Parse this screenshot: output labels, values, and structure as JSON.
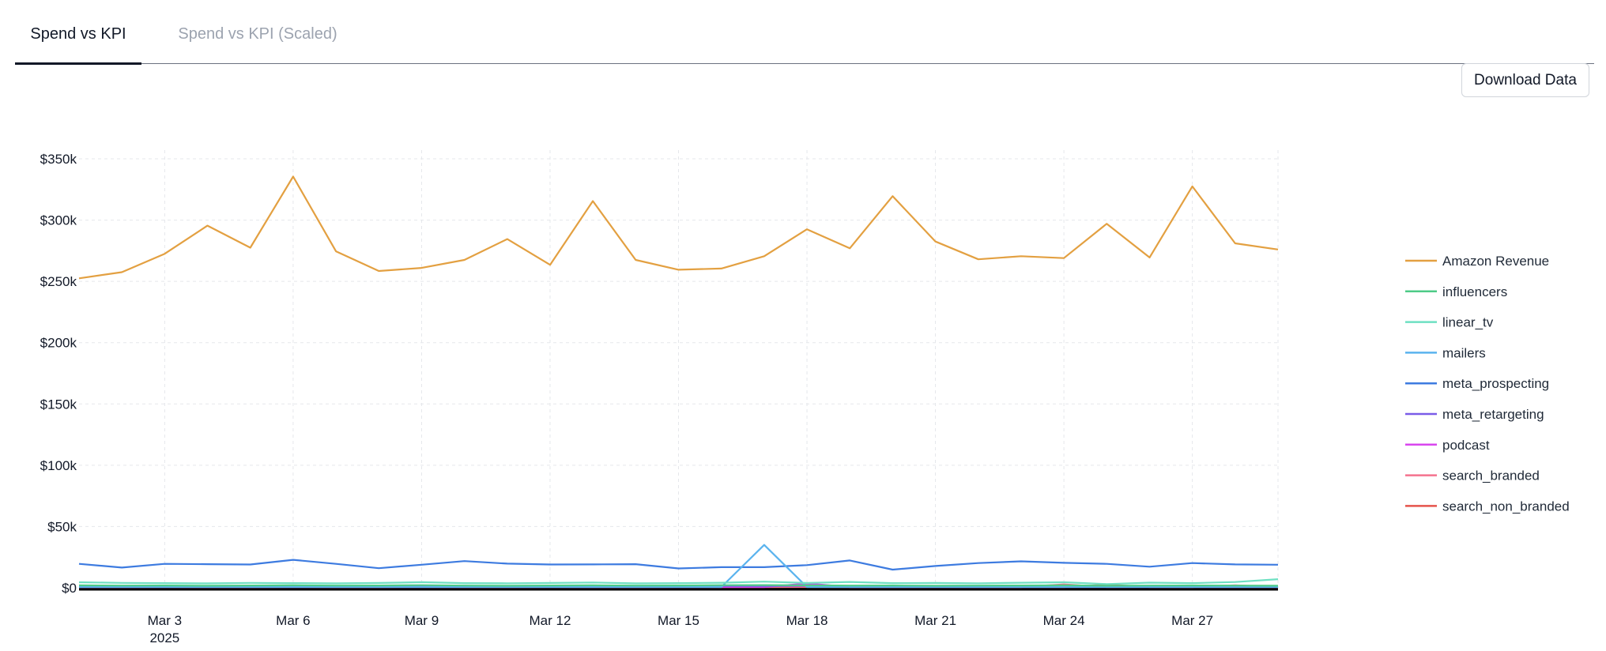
{
  "tabs": [
    {
      "label": "Spend vs KPI"
    },
    {
      "label": "Spend vs KPI (Scaled)"
    }
  ],
  "toolbar": {
    "download_label": "Download Data"
  },
  "chart_data": {
    "type": "line",
    "x_start": "2025-03-01",
    "x": [
      "Mar 1",
      "Mar 2",
      "Mar 3",
      "Mar 4",
      "Mar 5",
      "Mar 6",
      "Mar 7",
      "Mar 8",
      "Mar 9",
      "Mar 10",
      "Mar 11",
      "Mar 12",
      "Mar 13",
      "Mar 14",
      "Mar 15",
      "Mar 16",
      "Mar 17",
      "Mar 18",
      "Mar 19",
      "Mar 20",
      "Mar 21",
      "Mar 22",
      "Mar 23",
      "Mar 24",
      "Mar 25",
      "Mar 26",
      "Mar 27",
      "Mar 28",
      "Mar 29"
    ],
    "x_ticks": [
      {
        "label": "Mar 3",
        "sublabel": "2025",
        "day": 3
      },
      {
        "label": "Mar 6",
        "sublabel": "",
        "day": 6
      },
      {
        "label": "Mar 9",
        "sublabel": "",
        "day": 9
      },
      {
        "label": "Mar 12",
        "sublabel": "",
        "day": 12
      },
      {
        "label": "Mar 15",
        "sublabel": "",
        "day": 15
      },
      {
        "label": "Mar 18",
        "sublabel": "",
        "day": 18
      },
      {
        "label": "Mar 21",
        "sublabel": "",
        "day": 21
      },
      {
        "label": "Mar 24",
        "sublabel": "",
        "day": 24
      },
      {
        "label": "Mar 27",
        "sublabel": "",
        "day": 27
      }
    ],
    "y_ticks": [
      {
        "value": 0,
        "label": "$0"
      },
      {
        "value": 50000,
        "label": "$50k"
      },
      {
        "value": 100000,
        "label": "$100k"
      },
      {
        "value": 150000,
        "label": "$150k"
      },
      {
        "value": 200000,
        "label": "$200k"
      },
      {
        "value": 250000,
        "label": "$250k"
      },
      {
        "value": 300000,
        "label": "$300k"
      },
      {
        "value": 350000,
        "label": "$350k"
      }
    ],
    "ylim": [
      0,
      350000
    ],
    "grid": true,
    "legend_position": "right",
    "series": [
      {
        "name": "Amazon Revenue",
        "color": "#E3A041",
        "values": [
          252500,
          257500,
          272500,
          295500,
          277500,
          335500,
          274500,
          258500,
          261000,
          267500,
          284500,
          263500,
          315500,
          267500,
          259500,
          260500,
          270500,
          292500,
          277000,
          319500,
          282500,
          268000,
          270500,
          269000,
          297000,
          269500,
          327500,
          281000,
          276000
        ]
      },
      {
        "name": "influencers",
        "color": "#4ECB87",
        "values": [
          2000,
          1800,
          1900,
          1700,
          1900,
          2000,
          1800,
          1900,
          2100,
          1800,
          1700,
          1900,
          2000,
          1800,
          1900,
          2100,
          2200,
          2000,
          1800,
          1900,
          1700,
          1800,
          1900,
          2000,
          1700,
          1800,
          1900,
          1800,
          1700
        ]
      },
      {
        "name": "linear_tv",
        "color": "#6EE0C2",
        "values": [
          4500,
          4000,
          3800,
          3600,
          4000,
          3800,
          3600,
          3900,
          4600,
          3800,
          3700,
          3900,
          4300,
          3600,
          3800,
          4100,
          5000,
          3900,
          4800,
          3800,
          3900,
          3700,
          4100,
          4500,
          3000,
          4200,
          3800,
          4700,
          7000
        ]
      },
      {
        "name": "mailers",
        "color": "#5AB3EE",
        "values": [
          0,
          0,
          0,
          0,
          0,
          0,
          0,
          0,
          0,
          0,
          0,
          0,
          0,
          0,
          0,
          0,
          35000,
          0,
          0,
          0,
          0,
          0,
          0,
          0,
          0,
          0,
          0,
          0,
          0
        ]
      },
      {
        "name": "meta_prospecting",
        "color": "#3D7BE0",
        "values": [
          19500,
          16500,
          19500,
          19300,
          19000,
          22800,
          19500,
          16000,
          18800,
          21800,
          19700,
          19000,
          19100,
          19300,
          15800,
          16800,
          16800,
          18500,
          22300,
          14800,
          17800,
          20200,
          21600,
          20400,
          19500,
          17200,
          20200,
          19100,
          18800
        ]
      },
      {
        "name": "meta_retargeting",
        "color": "#7A5CE8",
        "values": [
          1500,
          1400,
          1500,
          1300,
          1400,
          1500,
          1300,
          1400,
          1500,
          1600,
          1300,
          1400,
          1500,
          1400,
          1300,
          1500,
          1400,
          1600,
          1500,
          1300,
          1400,
          1500,
          1300,
          1400,
          1500,
          1300,
          1400,
          1500,
          1200
        ]
      },
      {
        "name": "podcast",
        "color": "#D946EF",
        "values": [
          0,
          0,
          0,
          0,
          0,
          0,
          0,
          0,
          0,
          0,
          0,
          0,
          0,
          0,
          0,
          0,
          0,
          3500,
          0,
          0,
          0,
          0,
          0,
          0,
          0,
          0,
          0,
          0,
          0
        ]
      },
      {
        "name": "search_branded",
        "color": "#F4728E",
        "values": [
          600,
          500,
          700,
          600,
          500,
          700,
          600,
          500,
          700,
          600,
          500,
          700,
          600,
          500,
          700,
          600,
          500,
          700,
          600,
          500,
          700,
          600,
          500,
          2800,
          600,
          700,
          500,
          2000,
          600
        ]
      },
      {
        "name": "search_non_branded",
        "color": "#E5534B",
        "values": [
          300,
          400,
          300,
          400,
          300,
          400,
          300,
          400,
          300,
          400,
          300,
          400,
          300,
          400,
          300,
          400,
          300,
          400,
          300,
          400,
          300,
          400,
          300,
          400,
          2500,
          300,
          400,
          300,
          400
        ]
      }
    ]
  }
}
